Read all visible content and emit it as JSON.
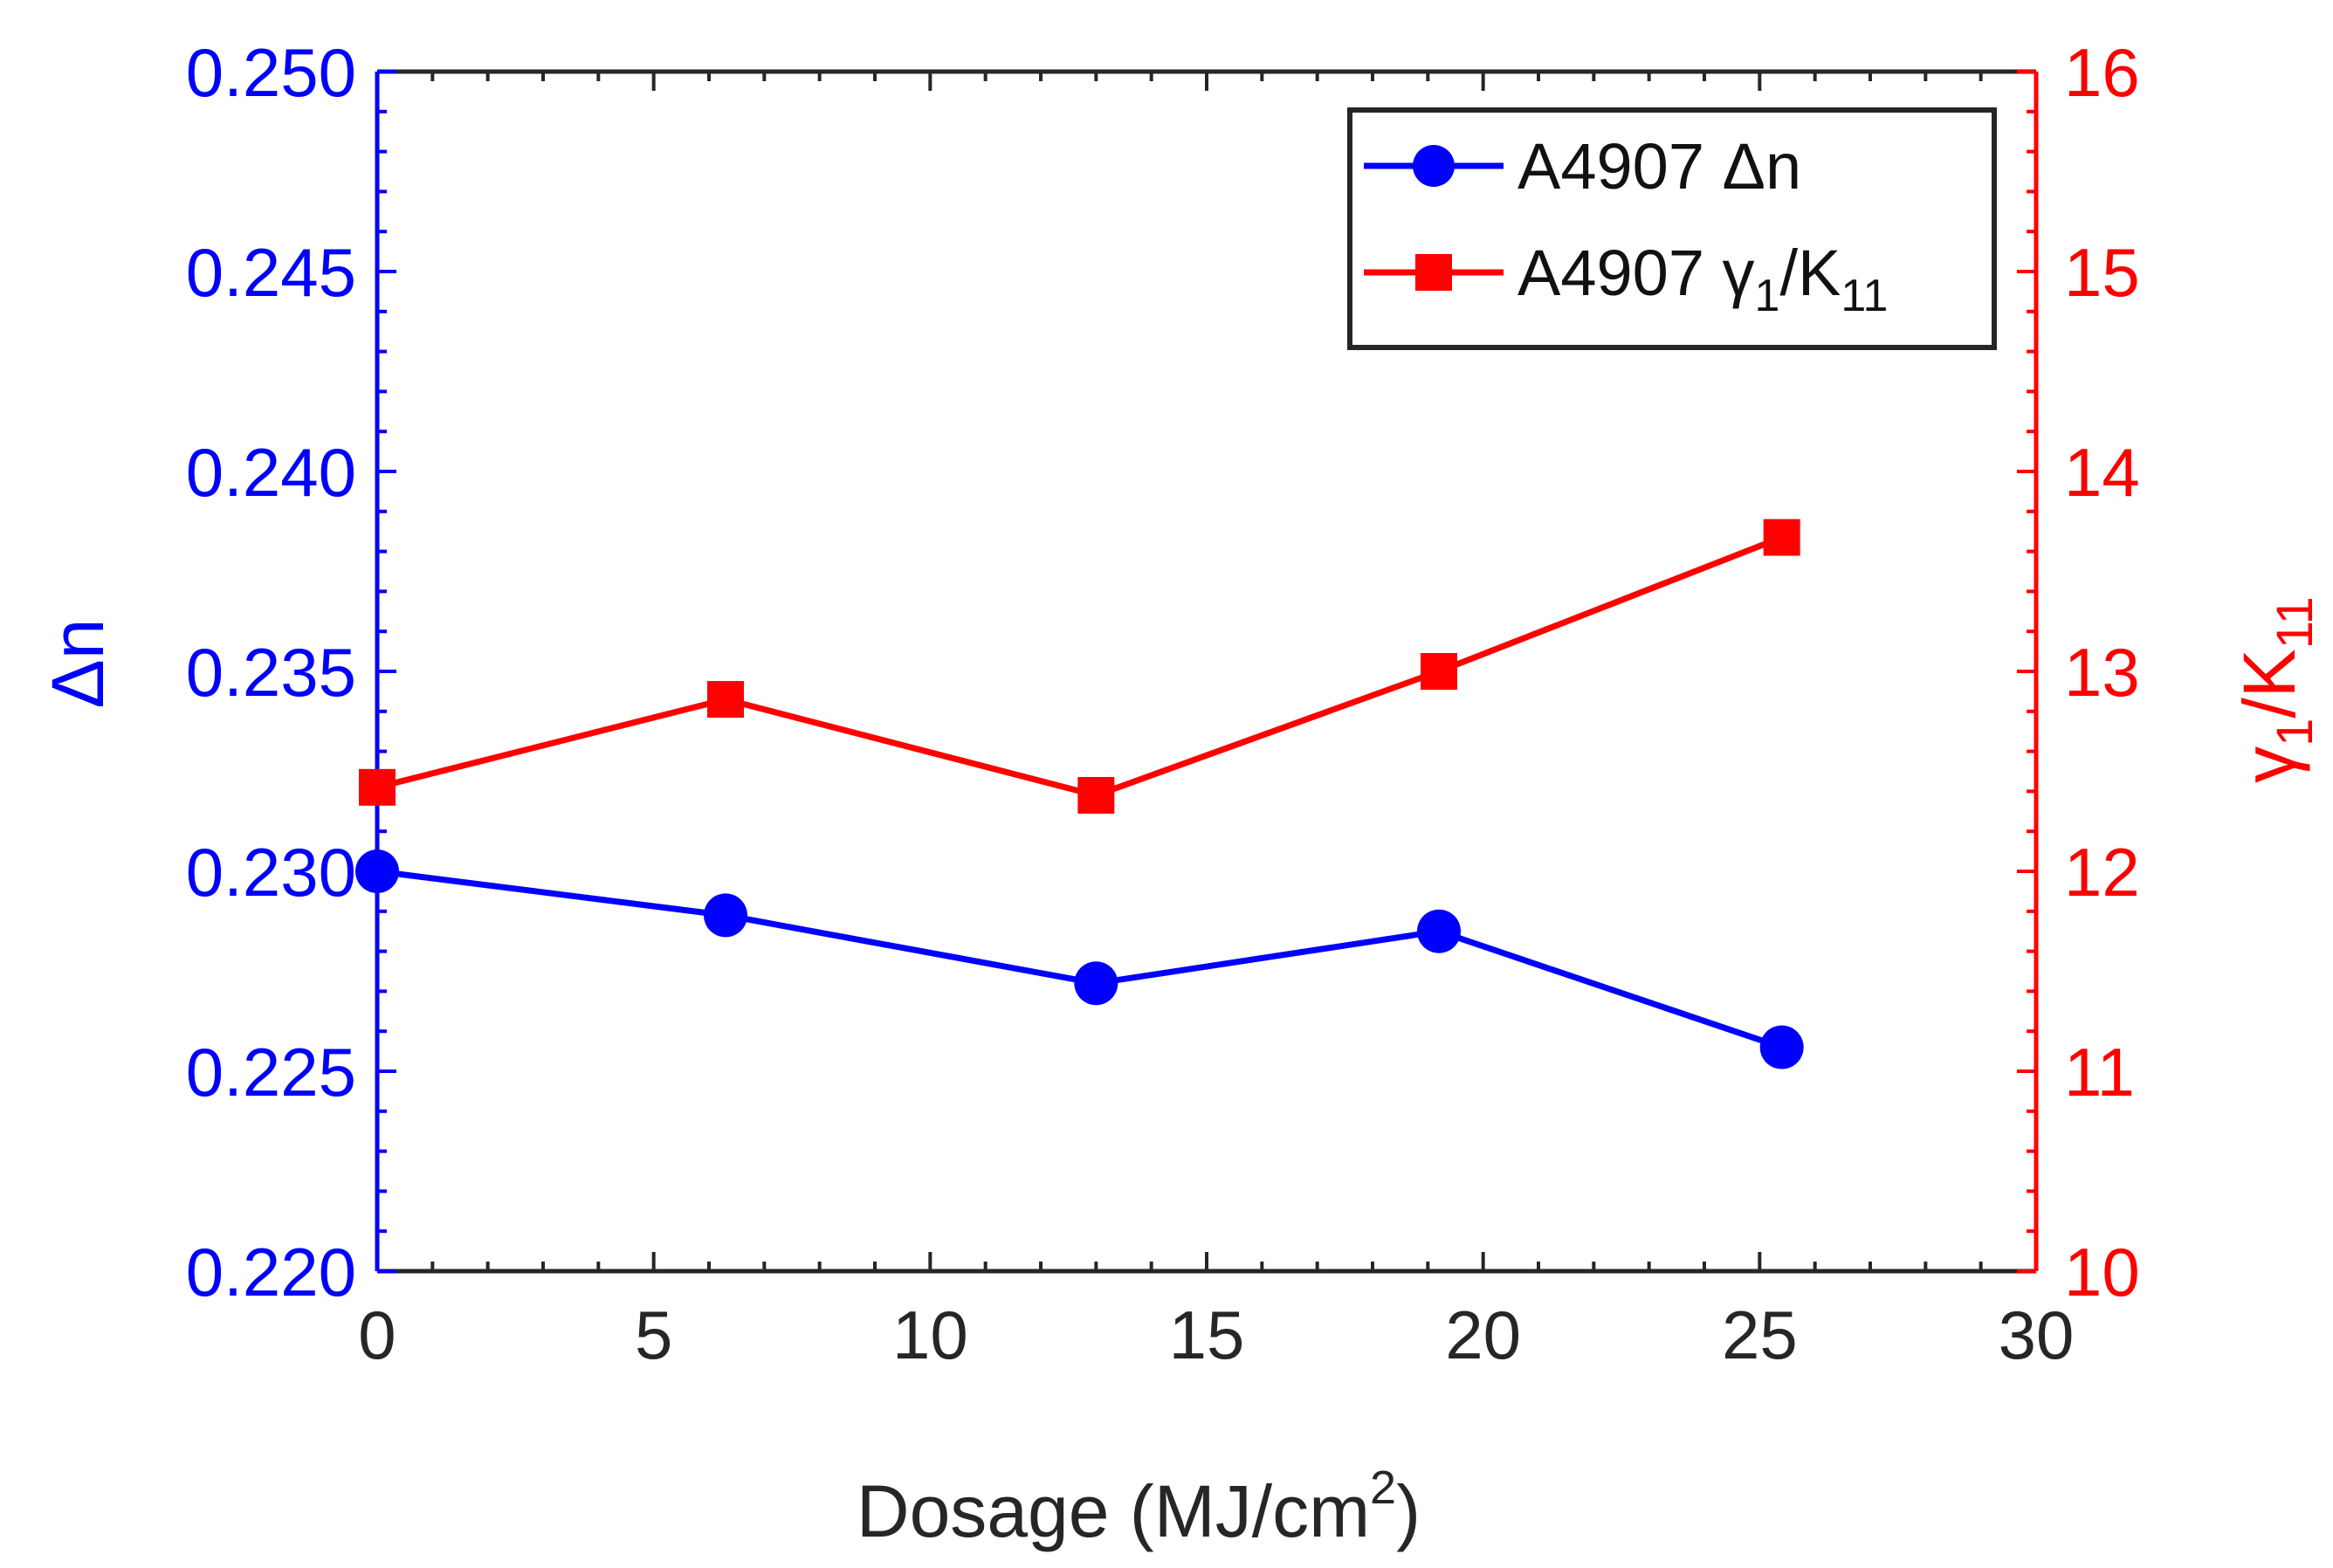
{
  "chart_data": {
    "type": "line",
    "title": "",
    "xlabel": "Dosage (MJ/cm",
    "xlabel_sup": "2",
    "xlabel_end": ")",
    "xlim": [
      0,
      30
    ],
    "x_ticks": [
      "0",
      "5",
      "10",
      "15",
      "20",
      "25",
      "30"
    ],
    "x_tick_values": [
      0,
      5,
      10,
      15,
      20,
      25,
      30
    ],
    "y_left": {
      "label": "Δn",
      "lim": [
        0.22,
        0.25
      ],
      "ticks": [
        "0.220",
        "0.225",
        "0.230",
        "0.235",
        "0.240",
        "0.245",
        "0.250"
      ],
      "tick_values": [
        0.22,
        0.225,
        0.23,
        0.235,
        0.24,
        0.245,
        0.25
      ],
      "color": "#0000ff"
    },
    "y_right": {
      "label": "γ",
      "label_sub1": "1",
      "label_mid": "/K",
      "label_sub2": "11",
      "lim": [
        10,
        16
      ],
      "ticks": [
        "10",
        "11",
        "12",
        "13",
        "14",
        "15",
        "16"
      ],
      "tick_values": [
        10,
        11,
        12,
        13,
        14,
        15,
        16
      ],
      "color": "#ff0000"
    },
    "series": [
      {
        "name": "A4907 Δn",
        "axis": "left",
        "marker": "circle",
        "color": "#0000ff",
        "x": [
          0,
          6.3,
          13.0,
          19.2,
          25.4
        ],
        "y": [
          0.23,
          0.2289,
          0.2272,
          0.2285,
          0.2256
        ]
      },
      {
        "name": "A4907 γ",
        "legend_sub1": "1",
        "legend_mid": "/K",
        "legend_sub2": "11",
        "axis": "right",
        "marker": "square",
        "color": "#ff0000",
        "x": [
          0,
          6.3,
          13.0,
          19.2,
          25.4
        ],
        "y": [
          12.42,
          12.86,
          12.38,
          13.0,
          13.67
        ]
      }
    ],
    "legend_position": "top-right"
  }
}
